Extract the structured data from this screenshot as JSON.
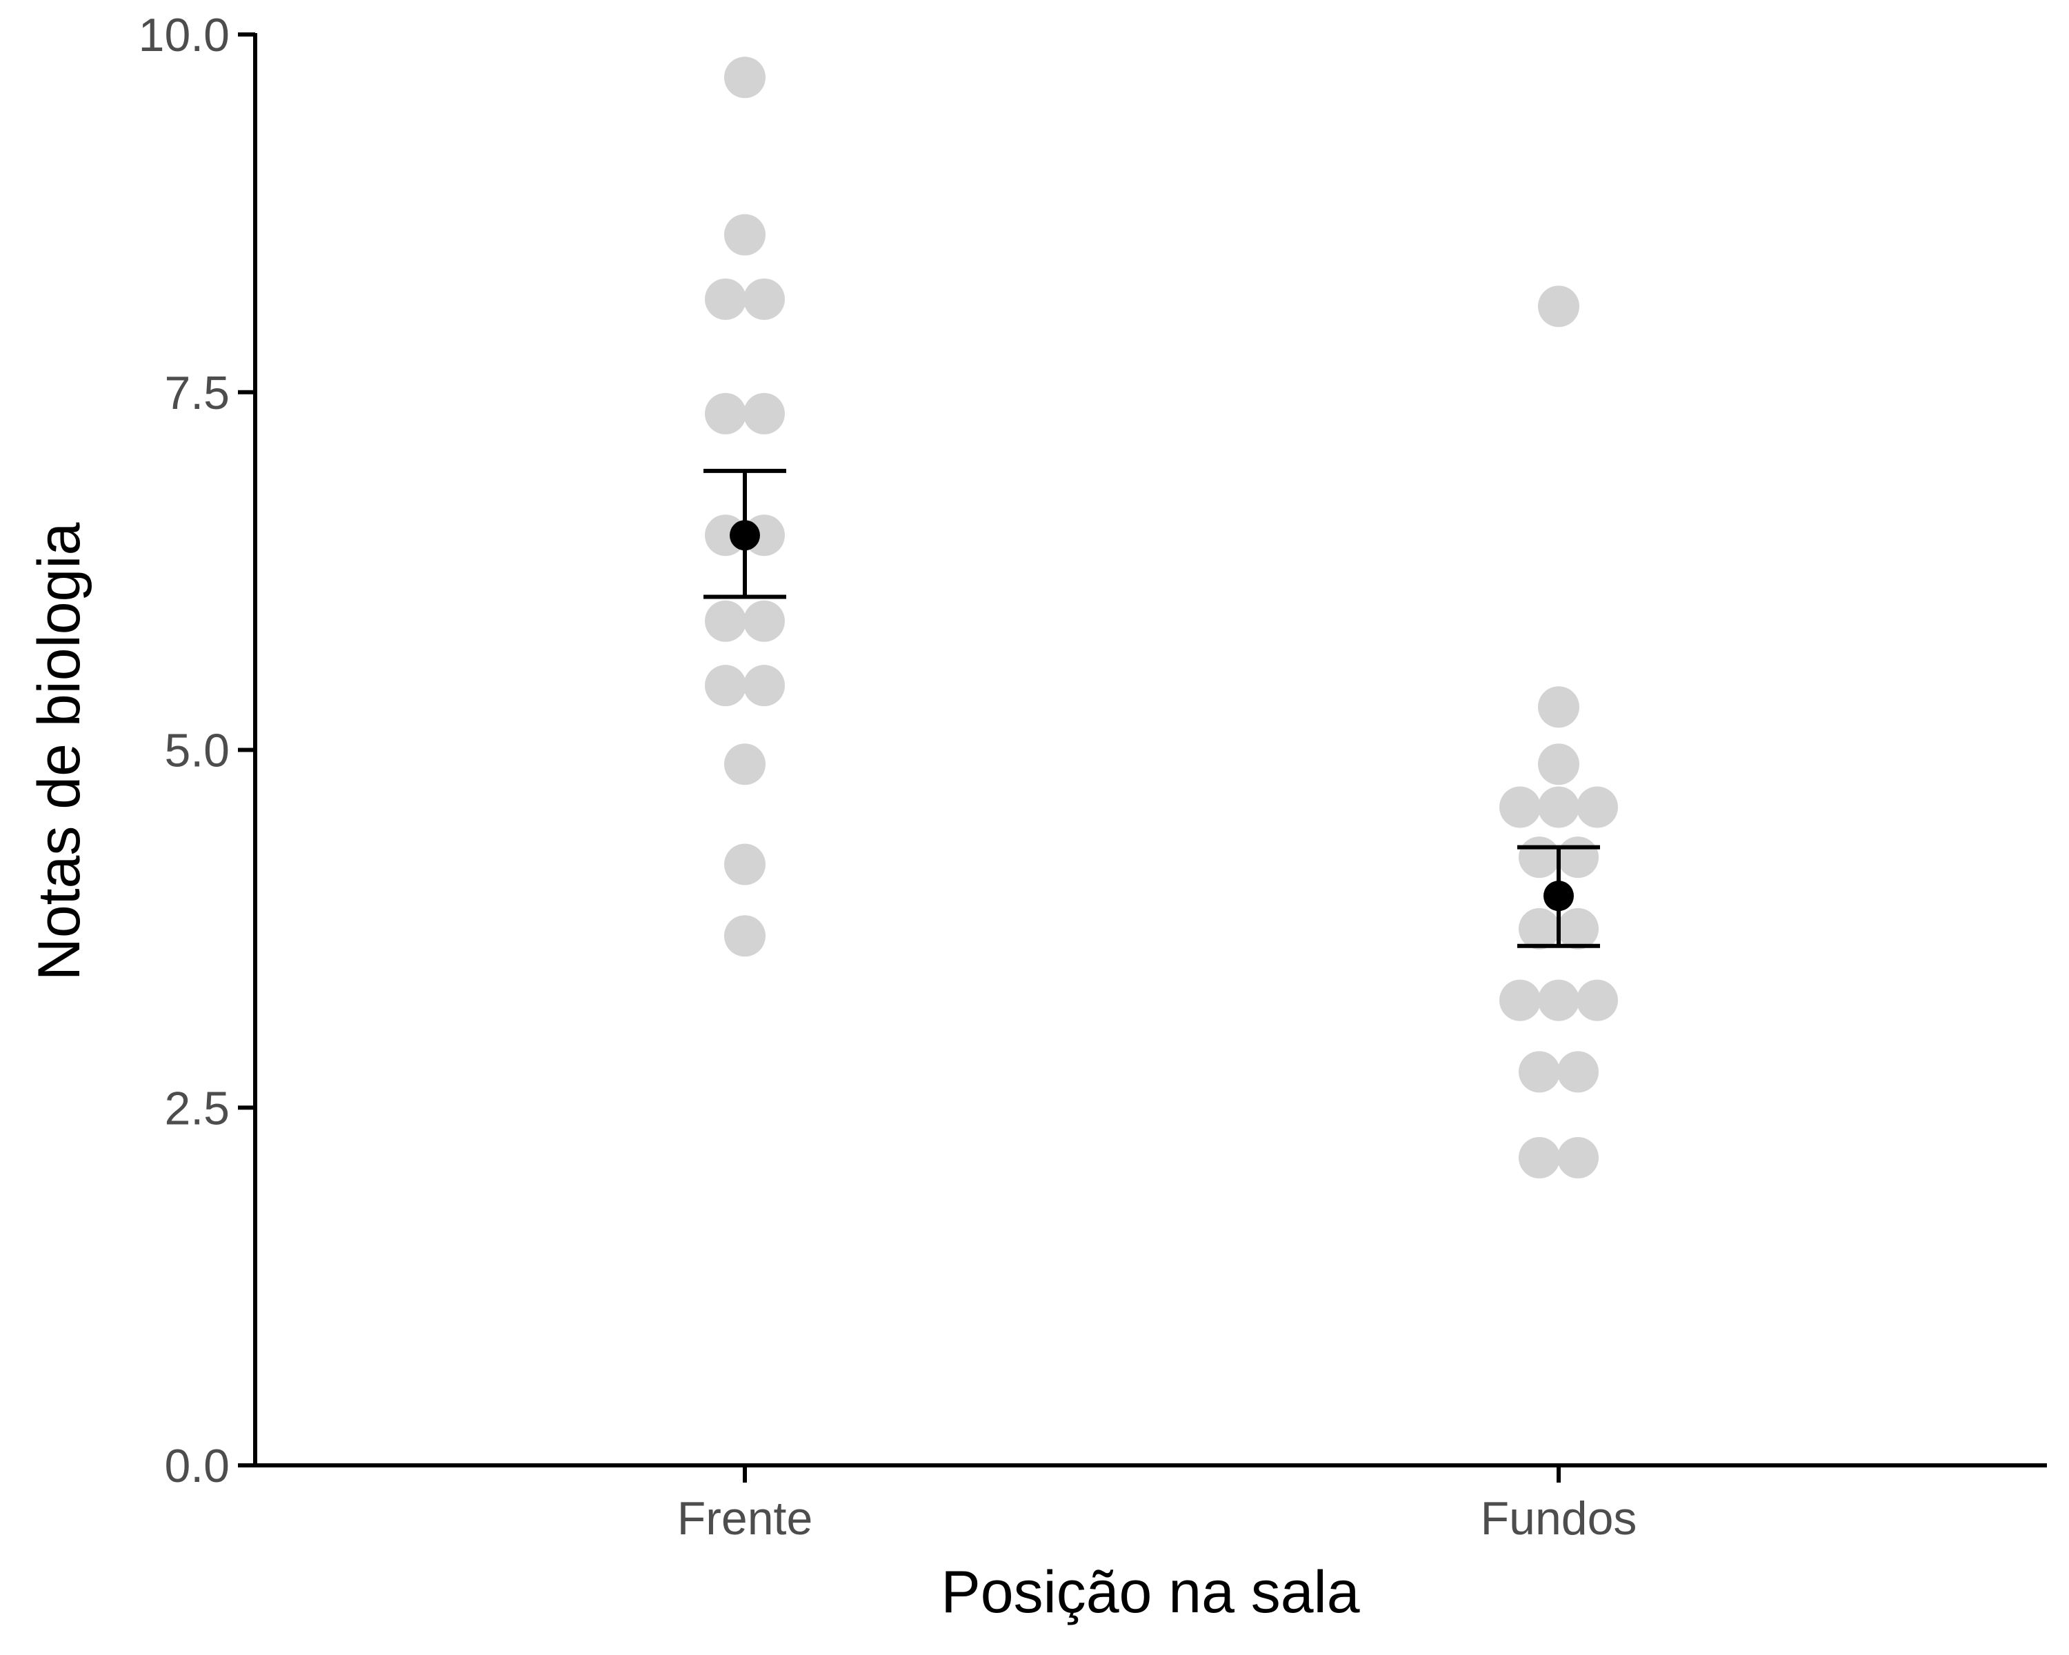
{
  "chart_data": {
    "type": "scatter",
    "subtype": "dotplot-with-mean-and-error-bars",
    "title": "",
    "xlabel": "Posição na sala",
    "ylabel": "Notas de biologia",
    "categories": [
      "Frente",
      "Fundos"
    ],
    "ylim": [
      0,
      10
    ],
    "yticks": [
      0,
      2.5,
      5,
      7.5,
      10
    ],
    "ytick_labels": [
      "0.0",
      "2.5",
      "5.0",
      "7.5",
      "10.0"
    ],
    "grid": false,
    "legend": "none",
    "colors": {
      "raw_points": "#d3d3d3",
      "summary": "#000000",
      "tick_labels": "#4d4d4d"
    },
    "series": [
      {
        "category": "Frente",
        "points": [
          9.7,
          8.6,
          8.15,
          8.15,
          7.35,
          7.35,
          6.5,
          6.5,
          5.9,
          5.9,
          5.45,
          5.45,
          4.9,
          4.2,
          3.7
        ],
        "mean": 6.5,
        "error_low": 6.07,
        "error_high": 6.95
      },
      {
        "category": "Fundos",
        "points": [
          8.1,
          5.3,
          4.9,
          4.6,
          4.6,
          4.6,
          4.25,
          4.25,
          3.75,
          3.75,
          3.25,
          3.25,
          3.25,
          2.75,
          2.75,
          2.15,
          2.15
        ],
        "mean": 3.98,
        "error_low": 3.63,
        "error_high": 4.32
      }
    ]
  }
}
